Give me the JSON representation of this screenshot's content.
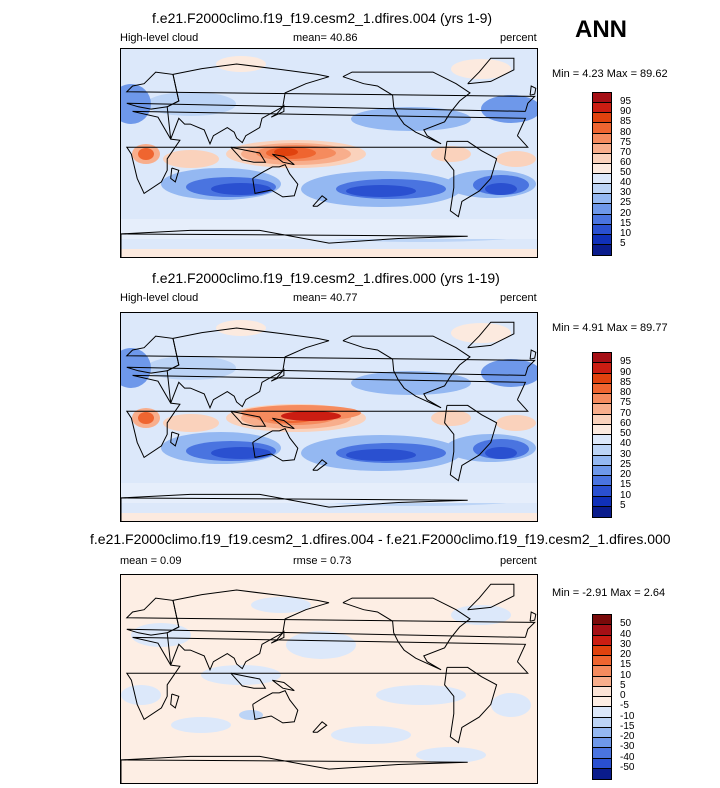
{
  "season": "ANN",
  "panels": [
    {
      "title": "f.e21.F2000climo.f19_f19.cesm2_1.dfires.004 (yrs 1-9)",
      "left_label": "High-level cloud",
      "center_label": "mean=  40.86",
      "units": "percent",
      "minmax": "Min =   4.23 Max =  89.62",
      "levels": [
        "95",
        "90",
        "85",
        "80",
        "75",
        "70",
        "60",
        "50",
        "40",
        "30",
        "25",
        "20",
        "15",
        "10",
        "5"
      ],
      "colors": [
        "#A50F15",
        "#CB1D12",
        "#E0420E",
        "#EF6530",
        "#F58B5E",
        "#F8AE8C",
        "#FAD2BC",
        "#FCEADF",
        "#DCE8FA",
        "#BCD4F6",
        "#94B8F2",
        "#6E98EA",
        "#4A74E0",
        "#2A50D0",
        "#1030B8",
        "#0A1C8C"
      ],
      "pattern": "cloud1"
    },
    {
      "title": "f.e21.F2000climo.f19_f19.cesm2_1.dfires.000 (yrs 1-19)",
      "left_label": "High-level cloud",
      "center_label": "mean=  40.77",
      "units": "percent",
      "minmax": "Min =   4.91 Max =  89.77",
      "levels": [
        "95",
        "90",
        "85",
        "80",
        "75",
        "70",
        "60",
        "50",
        "40",
        "30",
        "25",
        "20",
        "15",
        "10",
        "5"
      ],
      "colors": [
        "#A50F15",
        "#CB1D12",
        "#E0420E",
        "#EF6530",
        "#F58B5E",
        "#F8AE8C",
        "#FAD2BC",
        "#FCEADF",
        "#DCE8FA",
        "#BCD4F6",
        "#94B8F2",
        "#6E98EA",
        "#4A74E0",
        "#2A50D0",
        "#1030B8",
        "#0A1C8C"
      ],
      "pattern": "cloud2"
    },
    {
      "title": "f.e21.F2000climo.f19_f19.cesm2_1.dfires.004 - f.e21.F2000climo.f19_f19.cesm2_1.dfires.000",
      "left_label": "mean =   0.09",
      "center_label": "rmse =   0.73",
      "units": "percent",
      "minmax": "Min =  -2.91 Max =   2.64",
      "levels": [
        "50",
        "40",
        "30",
        "20",
        "15",
        "10",
        "5",
        "0",
        "-5",
        "-10",
        "-15",
        "-20",
        "-30",
        "-40",
        "-50"
      ],
      "colors": [
        "#7A0A0A",
        "#A50F15",
        "#CB1D12",
        "#E0420E",
        "#EF6530",
        "#F58B5E",
        "#F8AE8C",
        "#FBE3D6",
        "#FDEEE4",
        "#DCE8FA",
        "#BCD4F6",
        "#94B8F2",
        "#6E98EA",
        "#4A74E0",
        "#2A50D0",
        "#0A1C8C"
      ],
      "pattern": "diff"
    }
  ]
}
